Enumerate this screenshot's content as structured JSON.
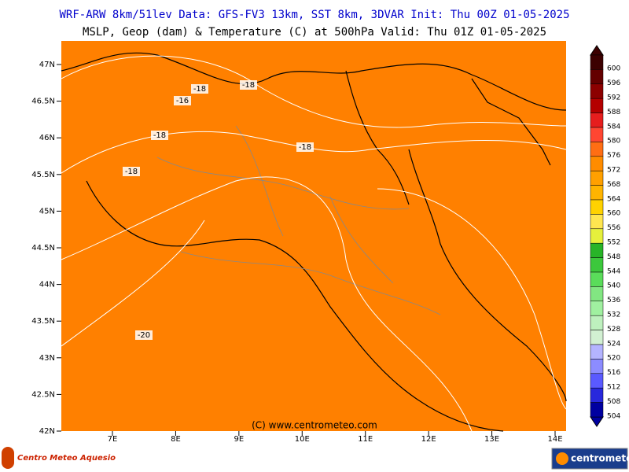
{
  "header": {
    "line1": "WRF-ARW 8km/51lev  Data: GFS-FV3 13km, SST 8km, 3DVAR  Init: Thu 00Z 01-05-2025",
    "line2": "MSLP, Geop (dam) & Temperature (C) at 500hPa  Valid: Thu 01Z 01-05-2025"
  },
  "map": {
    "fill": "#ff8000",
    "lat_ticks": [
      "47N",
      "46.5N",
      "46N",
      "45.5N",
      "45N",
      "44.5N",
      "44N",
      "43.5N",
      "43N",
      "42.5N",
      "42N"
    ],
    "lon_ticks": [
      "7E",
      "8E",
      "9E",
      "10E",
      "11E",
      "12E",
      "13E",
      "14E"
    ],
    "isotherm_labels": [
      "-18",
      "-16",
      "-18",
      "-18",
      "-18",
      "-18",
      "-20"
    ],
    "credit": "(C) www.centrometeo.com"
  },
  "colorbar": {
    "levels": [
      600,
      596,
      592,
      588,
      584,
      580,
      576,
      572,
      568,
      564,
      560,
      556,
      552,
      548,
      544,
      540,
      536,
      532,
      528,
      524,
      520,
      516,
      512,
      508,
      504
    ],
    "colors": [
      "#3c0000",
      "#640000",
      "#8c0000",
      "#b40000",
      "#e61e1e",
      "#ff4632",
      "#ff6e14",
      "#ff8c00",
      "#ffa000",
      "#ffb400",
      "#ffd200",
      "#ffe650",
      "#e6f03c",
      "#28b428",
      "#3cc83c",
      "#5adc5a",
      "#82e682",
      "#a0f0a0",
      "#bef0be",
      "#d2f0d2",
      "#b4b4ff",
      "#8c8cff",
      "#5a5aff",
      "#2828dc",
      "#0000a0"
    ]
  },
  "footer": {
    "left_logo": "Centro Meteo Aquesio",
    "right_logo": "centrometeo"
  }
}
